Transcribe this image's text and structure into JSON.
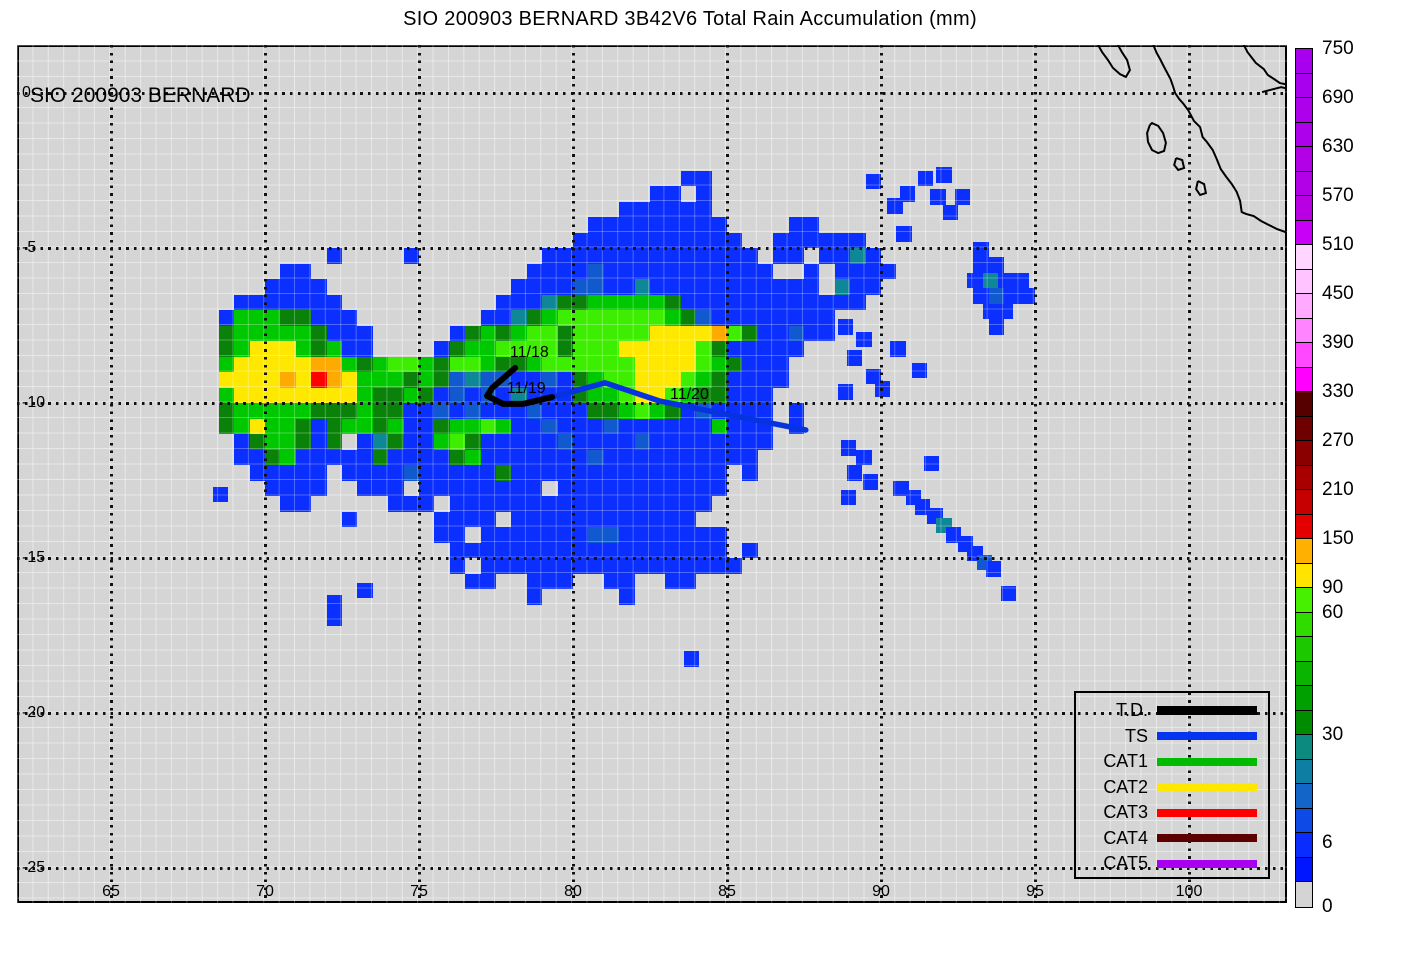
{
  "title": "SIO 200903 BERNARD 3B42V6 Total Rain Accumulation (mm)",
  "map": {
    "inset_label": "SIO 200903 BERNARD",
    "background_color": "#d5d5d5",
    "x_tick_values": [
      65,
      70,
      75,
      80,
      85,
      90,
      95,
      100
    ],
    "x_tick_labels": [
      "65",
      "70",
      "75",
      "80",
      "85",
      "90",
      "95",
      "100"
    ],
    "y_tick_values": [
      0,
      -5,
      -10,
      -15,
      -20,
      -25
    ],
    "y_tick_labels": [
      "0",
      "-5",
      "-10",
      "-15",
      "-20",
      "-25"
    ],
    "grid_lons": [
      65,
      70,
      75,
      80,
      85,
      90,
      95,
      100
    ],
    "grid_lats": [
      0,
      -5,
      -10,
      -15,
      -20,
      -25
    ],
    "lon_range": [
      62.0,
      103.2
    ],
    "lat_range": [
      -26.2,
      1.55
    ]
  },
  "chart_data": {
    "type": "heatmap",
    "title": "SIO 200903 BERNARD 3B42V6 Total Rain Accumulation (mm)",
    "units": "mm",
    "colorbar": {
      "values": [
        0,
        6,
        30,
        60,
        90,
        150,
        210,
        270,
        330,
        390,
        450,
        510,
        570,
        630,
        690,
        750
      ],
      "cells": [
        "#a800ef",
        "#a800ef",
        "#ad00eb",
        "#ad00eb",
        "#b200e7",
        "#b200e7",
        "#b800e2",
        "#c800f8",
        "#ffd6ff",
        "#ffc4ff",
        "#ffaaff",
        "#ff84ff",
        "#ff48ff",
        "#ff00ff",
        "#560000",
        "#6e0000",
        "#8a0000",
        "#a80000",
        "#c60000",
        "#e40000",
        "#ffb000",
        "#ffe400",
        "#46f000",
        "#30dc00",
        "#1cc800",
        "#0ab400",
        "#00a000",
        "#008c00",
        "#0d8a80",
        "#0e7fa2",
        "#1465c8",
        "#0e4ae6",
        "#0a2cff",
        "#0016ff",
        "#d4d4d4"
      ],
      "labels": [
        {
          "text": "750",
          "pos": 0
        },
        {
          "text": "690",
          "pos": 2
        },
        {
          "text": "630",
          "pos": 4
        },
        {
          "text": "570",
          "pos": 6
        },
        {
          "text": "510",
          "pos": 8
        },
        {
          "text": "450",
          "pos": 10
        },
        {
          "text": "390",
          "pos": 12
        },
        {
          "text": "330",
          "pos": 14
        },
        {
          "text": "270",
          "pos": 16
        },
        {
          "text": "210",
          "pos": 18
        },
        {
          "text": "150",
          "pos": 20
        },
        {
          "text": "90",
          "pos": 22
        },
        {
          "text": "60",
          "pos": 23
        },
        {
          "text": "30",
          "pos": 28
        },
        {
          "text": "6",
          "pos": 32.4
        },
        {
          "text": "0",
          "pos": 35
        }
      ]
    },
    "rain_grid": {
      "lon0": 68.5,
      "lat0": -2.5,
      "cell_deg": 0.5,
      "palette": {
        "b": "#0a2fff",
        "B": "#1059cf",
        "t": "#0e8796",
        "d": "#0a820a",
        "g": "#00c800",
        "G": "#3dee00",
        "y": "#ffe800",
        "o": "#ffaa00",
        "r": "#ff0000"
      },
      "palette_mm": {
        "b": "6-18",
        "B": "18-30",
        "t": "30-42",
        "d": "42-54",
        "g": "54-66",
        "G": "66-90",
        "y": "90-150",
        "o": "150-210",
        "r": "210-270"
      },
      "rows": [
        "..............................bb........",
        "............................bb.b........",
        "..........................bbbbbb........",
        "........................bbbbbbbbb....bb.",
        ".......................bbbbbbbbbbb..bbbb",
        ".......b....b........bbbbbbbbbbbbbb.bb.b",
        "....bb..............bbbbBbbbbbbbbbbb..b.",
        "...bbbb............bbbbBBbbtbbbbbbbbbbb.",
        ".bbbbbbb..........bbbtddgggggdbbbbbbbbbb",
        "bgggddbbb........bbtdgGGGGGGGgdBbbbbbbbb",
        "dgggggdbbb.....bdgdgGGdGGGGGyyyyoGdbbBbb",
        "dgyyygdgbb....bdggGGGGdGGGyyyyyGdbbbbb..",
        "gyyyyyoogdgGGgdGGgddgGGGGGGyyyyGgdbbb...",
        "yyyyoyroygggdgdBtBBbbBbdgGGyyyGgdbbbb...",
        "gyyyyyyyygddgdbBbBbtbbbdggGyyGgddbbb....",
        "dgggggdddgddbbBbBbbbBbbbddgGgdbBbbbb.b..",
        "dgyggdbdggdgbbdggGgbbBbbbBbbbbbbgbbb.b..",
        ".bdggdbd.btdbbgGdbbbbbBbbbbBbbbbbbbb....",
        ".bbdgbbbbbdbbbbdgbbbbbbbBbbbbbbbbbb.....",
        "..bbbbb.bbbbBbbbbbdbbbbbbbbbbbbbb.b.....",
        "...bbbb..bbb.bbbbbbbb.bbbbbbbbbbb.......",
        "....bb.....bbb.bbbbbbbbbbbbbbbbb........",
        "........b.....bbbb.bbbbbbbbbbbb.........",
        "..............bb.bbbbbbbBBbbbbbbb.......",
        "...............bbbbbbbbbbbbbbbbbb.b.....",
        "...............b.bbbbbbbbbbbbbbbbb......",
        "................bb..bbb..bb..bb.........",
        "....................b.....b............."
      ]
    },
    "rain_scatter": [
      [
        89.5,
        -2.6,
        "b"
      ],
      [
        88.5,
        -4.5,
        "b"
      ],
      [
        89.0,
        -4.5,
        "b"
      ],
      [
        88.5,
        -5.0,
        "b"
      ],
      [
        89.0,
        -5.0,
        "t"
      ],
      [
        89.5,
        -5.0,
        "b"
      ],
      [
        88.5,
        -5.5,
        "b"
      ],
      [
        89.0,
        -5.5,
        "b"
      ],
      [
        89.5,
        -5.5,
        "b"
      ],
      [
        90.0,
        -5.5,
        "b"
      ],
      [
        88.5,
        -6.0,
        "t"
      ],
      [
        89.0,
        -6.0,
        "b"
      ],
      [
        89.5,
        -6.0,
        "b"
      ],
      [
        88.5,
        -6.5,
        "b"
      ],
      [
        89.0,
        -6.5,
        "b"
      ],
      [
        90.2,
        -3.4,
        "b"
      ],
      [
        90.6,
        -3.0,
        "b"
      ],
      [
        91.2,
        -2.5,
        "b"
      ],
      [
        91.6,
        -3.1,
        "b"
      ],
      [
        92.0,
        -3.6,
        "b"
      ],
      [
        91.8,
        -2.4,
        "b"
      ],
      [
        92.4,
        -3.1,
        "b"
      ],
      [
        90.5,
        -4.3,
        "b"
      ],
      [
        93.0,
        -4.8,
        "b"
      ],
      [
        93.0,
        -5.3,
        "b"
      ],
      [
        93.5,
        -5.3,
        "b"
      ],
      [
        92.8,
        -5.8,
        "b"
      ],
      [
        93.3,
        -5.8,
        "t"
      ],
      [
        93.8,
        -5.8,
        "b"
      ],
      [
        94.3,
        -5.8,
        "b"
      ],
      [
        93.0,
        -6.3,
        "b"
      ],
      [
        93.5,
        -6.3,
        "B"
      ],
      [
        94.0,
        -6.3,
        "b"
      ],
      [
        94.5,
        -6.3,
        "b"
      ],
      [
        93.3,
        -6.8,
        "b"
      ],
      [
        93.8,
        -6.8,
        "b"
      ],
      [
        93.5,
        -7.3,
        "b"
      ],
      [
        88.6,
        -7.3,
        "b"
      ],
      [
        89.2,
        -7.7,
        "b"
      ],
      [
        88.9,
        -8.3,
        "b"
      ],
      [
        89.5,
        -8.9,
        "b"
      ],
      [
        88.6,
        -9.4,
        "b"
      ],
      [
        89.8,
        -9.3,
        "b"
      ],
      [
        90.3,
        -8.0,
        "b"
      ],
      [
        91.0,
        -8.7,
        "b"
      ],
      [
        88.7,
        -11.2,
        "b"
      ],
      [
        89.2,
        -11.5,
        "b"
      ],
      [
        88.9,
        -12.0,
        "b"
      ],
      [
        89.4,
        -12.3,
        "b"
      ],
      [
        88.7,
        -12.8,
        "b"
      ],
      [
        91.4,
        -11.7,
        "b"
      ],
      [
        90.4,
        -12.5,
        "b"
      ],
      [
        90.8,
        -12.8,
        "b"
      ],
      [
        91.1,
        -13.1,
        "b"
      ],
      [
        91.5,
        -13.4,
        "b"
      ],
      [
        91.8,
        -13.7,
        "t"
      ],
      [
        92.1,
        -14.0,
        "b"
      ],
      [
        92.5,
        -14.3,
        "b"
      ],
      [
        92.8,
        -14.6,
        "b"
      ],
      [
        93.1,
        -14.9,
        "B"
      ],
      [
        93.4,
        -15.1,
        "b"
      ],
      [
        93.9,
        -15.9,
        "b"
      ],
      [
        83.6,
        -18.0,
        "b"
      ],
      [
        72.0,
        -16.2,
        "b"
      ],
      [
        72.0,
        -16.7,
        "b"
      ],
      [
        73.0,
        -15.8,
        "b"
      ],
      [
        68.3,
        -12.7,
        "b"
      ]
    ],
    "storm_track": {
      "td_color": "#000000",
      "ts_color": "#0633dd",
      "td_points": [
        [
          78.12,
          -8.87
        ],
        [
          77.37,
          -9.52
        ],
        [
          77.21,
          -9.77
        ],
        [
          77.73,
          -10.03
        ],
        [
          78.38,
          -10.03
        ],
        [
          79.32,
          -9.81
        ]
      ],
      "ts_points": [
        [
          79.32,
          -9.81
        ],
        [
          81.04,
          -9.35
        ],
        [
          82.82,
          -9.94
        ],
        [
          84.74,
          -10.32
        ],
        [
          87.56,
          -10.87
        ]
      ],
      "labels": [
        {
          "text": "11/18",
          "lon": 77.95,
          "lat": -8.35
        },
        {
          "text": "11/19",
          "lon": 77.85,
          "lat": -9.52
        },
        {
          "text": "11/20",
          "lon": 83.15,
          "lat": -9.72
        }
      ]
    },
    "coastline": {
      "color": "#000000",
      "paths": [
        [
          [
            98.84,
            1.55
          ],
          [
            98.95,
            1.29
          ],
          [
            99.06,
            1.1
          ],
          [
            99.19,
            0.84
          ],
          [
            99.4,
            0.45
          ],
          [
            99.49,
            0.19
          ],
          [
            99.55,
            0.0
          ],
          [
            99.68,
            -0.19
          ],
          [
            99.82,
            -0.35
          ],
          [
            99.97,
            -0.55
          ],
          [
            100.16,
            -0.9
          ],
          [
            100.36,
            -1.1
          ],
          [
            100.44,
            -1.42
          ],
          [
            100.58,
            -1.58
          ],
          [
            100.77,
            -1.84
          ],
          [
            100.9,
            -2.13
          ],
          [
            101.03,
            -2.45
          ],
          [
            101.19,
            -2.68
          ],
          [
            101.39,
            -2.94
          ],
          [
            101.55,
            -3.19
          ],
          [
            101.66,
            -3.48
          ],
          [
            101.71,
            -3.84
          ],
          [
            101.85,
            -3.9
          ],
          [
            102.1,
            -3.97
          ],
          [
            102.34,
            -4.13
          ],
          [
            102.6,
            -4.26
          ],
          [
            102.86,
            -4.39
          ],
          [
            103.12,
            -4.48
          ],
          [
            103.25,
            -4.58
          ]
        ],
        [
          [
            97.05,
            1.55
          ],
          [
            97.18,
            1.32
          ],
          [
            97.37,
            1.06
          ],
          [
            97.53,
            0.81
          ],
          [
            97.76,
            0.61
          ],
          [
            97.95,
            0.52
          ],
          [
            98.08,
            0.74
          ],
          [
            97.99,
            1.06
          ],
          [
            97.82,
            1.32
          ],
          [
            97.69,
            1.55
          ]
        ],
        [
          [
            98.73,
            -1.03
          ],
          [
            98.64,
            -1.29
          ],
          [
            98.67,
            -1.58
          ],
          [
            98.8,
            -1.84
          ],
          [
            99.0,
            -1.94
          ],
          [
            99.19,
            -1.87
          ],
          [
            99.25,
            -1.61
          ],
          [
            99.16,
            -1.29
          ],
          [
            99.0,
            -1.06
          ],
          [
            98.8,
            -0.97
          ],
          [
            98.73,
            -1.03
          ]
        ],
        [
          [
            99.58,
            -2.1
          ],
          [
            99.52,
            -2.32
          ],
          [
            99.65,
            -2.48
          ],
          [
            99.84,
            -2.42
          ],
          [
            99.78,
            -2.16
          ],
          [
            99.58,
            -2.1
          ]
        ],
        [
          [
            100.29,
            -2.84
          ],
          [
            100.23,
            -3.1
          ],
          [
            100.36,
            -3.29
          ],
          [
            100.55,
            -3.23
          ],
          [
            100.49,
            -2.94
          ],
          [
            100.29,
            -2.84
          ]
        ],
        [
          [
            101.78,
            1.55
          ],
          [
            101.9,
            1.32
          ],
          [
            102.17,
            0.97
          ],
          [
            102.43,
            0.77
          ],
          [
            102.56,
            0.58
          ],
          [
            102.76,
            0.45
          ],
          [
            102.95,
            0.32
          ],
          [
            103.25,
            0.26
          ]
        ],
        [
          [
            102.37,
            0.03
          ],
          [
            102.99,
            0.19
          ],
          [
            103.25,
            0.13
          ]
        ]
      ]
    }
  },
  "legend": {
    "entries": [
      {
        "label": "T.D.",
        "color": "#000000"
      },
      {
        "label": "TS",
        "color": "#0633ee"
      },
      {
        "label": "CAT1",
        "color": "#00bb00"
      },
      {
        "label": "CAT2",
        "color": "#ffe800"
      },
      {
        "label": "CAT3",
        "color": "#ff0000"
      },
      {
        "label": "CAT4",
        "color": "#5c0000"
      },
      {
        "label": "CAT5",
        "color": "#a800f0"
      }
    ]
  }
}
